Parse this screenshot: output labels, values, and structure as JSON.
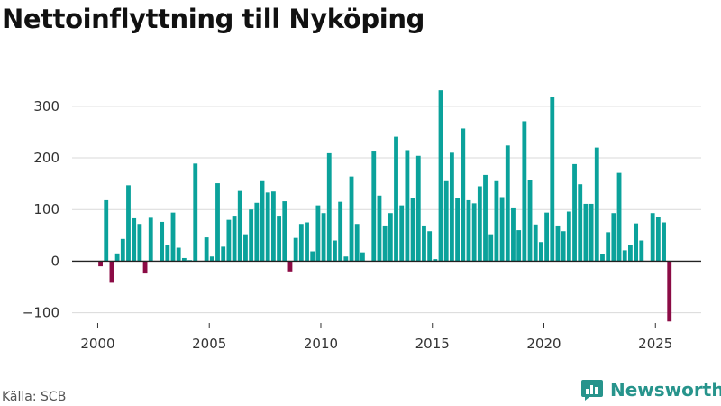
{
  "title": "Nettoinflyttning till Nyköping",
  "source": "Källa: SCB",
  "brand": "Newsworthy",
  "colors": {
    "positive": "#0ba29b",
    "negative": "#8b0b45",
    "brand": "#27948c",
    "grid": "#d9d9d9",
    "zero": "#222222"
  },
  "chart_data": {
    "type": "bar",
    "title": "Nettoinflyttning till Nyköping",
    "xlabel": "",
    "ylabel": "",
    "ylim": [
      -120,
      340
    ],
    "yticks": [
      -100,
      0,
      100,
      200,
      300
    ],
    "ytick_labels": [
      "−100",
      "0",
      "100",
      "200",
      "300"
    ],
    "xticks": [
      2000,
      2005,
      2010,
      2015,
      2020,
      2025
    ],
    "grid": true,
    "legend": "none",
    "series": [
      {
        "x": [
          "2000-01",
          "2000-04",
          "2000-07",
          "2000-10",
          "2001-01",
          "2001-04",
          "2001-07",
          "2001-10",
          "2002-01",
          "2002-04",
          "2002-07",
          "2002-10",
          "2003-01",
          "2003-04",
          "2003-07",
          "2003-10",
          "2004-01",
          "2004-04",
          "2004-07",
          "2004-10",
          "2005-01",
          "2005-04",
          "2005-07",
          "2005-10",
          "2006-01",
          "2006-04",
          "2006-07",
          "2006-10",
          "2007-01",
          "2007-04",
          "2007-07",
          "2007-10",
          "2008-01",
          "2008-04",
          "2008-07",
          "2008-10",
          "2009-01",
          "2009-04",
          "2009-07",
          "2009-10",
          "2010-01",
          "2010-04",
          "2010-07",
          "2010-10",
          "2011-01",
          "2011-04",
          "2011-07",
          "2011-10",
          "2012-01",
          "2012-04",
          "2012-07",
          "2012-10",
          "2013-01",
          "2013-04",
          "2013-07",
          "2013-10",
          "2014-01",
          "2014-04",
          "2014-07",
          "2014-10",
          "2015-01",
          "2015-04",
          "2015-07",
          "2015-10",
          "2016-01",
          "2016-04",
          "2016-07",
          "2016-10",
          "2017-01",
          "2017-04",
          "2017-07",
          "2017-10",
          "2018-01",
          "2018-04",
          "2018-07",
          "2018-10",
          "2019-01",
          "2019-04",
          "2019-07",
          "2019-10",
          "2020-01",
          "2020-04",
          "2020-07",
          "2020-10",
          "2021-01",
          "2021-04",
          "2021-07",
          "2021-10",
          "2022-01",
          "2022-04",
          "2022-07",
          "2022-10",
          "2023-01",
          "2023-04",
          "2023-07",
          "2023-10",
          "2024-01",
          "2024-04",
          "2024-07",
          "2024-10",
          "2025-01",
          "2025-04",
          "2025-07"
        ],
        "values": [
          -10,
          118,
          -42,
          15,
          43,
          147,
          83,
          72,
          -24,
          84,
          0,
          76,
          32,
          94,
          26,
          6,
          2,
          189,
          0,
          46,
          9,
          151,
          28,
          80,
          88,
          136,
          52,
          100,
          113,
          155,
          133,
          135,
          88,
          116,
          -20,
          45,
          72,
          75,
          19,
          108,
          93,
          209,
          40,
          115,
          9,
          164,
          72,
          17,
          0,
          214,
          127,
          69,
          93,
          241,
          108,
          215,
          123,
          204,
          69,
          58,
          4,
          331,
          155,
          210,
          123,
          257,
          118,
          112,
          145,
          167,
          52,
          155,
          124,
          224,
          104,
          60,
          271,
          157,
          71,
          37,
          94,
          319,
          69,
          58,
          96,
          188,
          149,
          111,
          111,
          220,
          14,
          56,
          93,
          171,
          21,
          31,
          73,
          40,
          0,
          93,
          85,
          75,
          -117
        ]
      }
    ]
  }
}
